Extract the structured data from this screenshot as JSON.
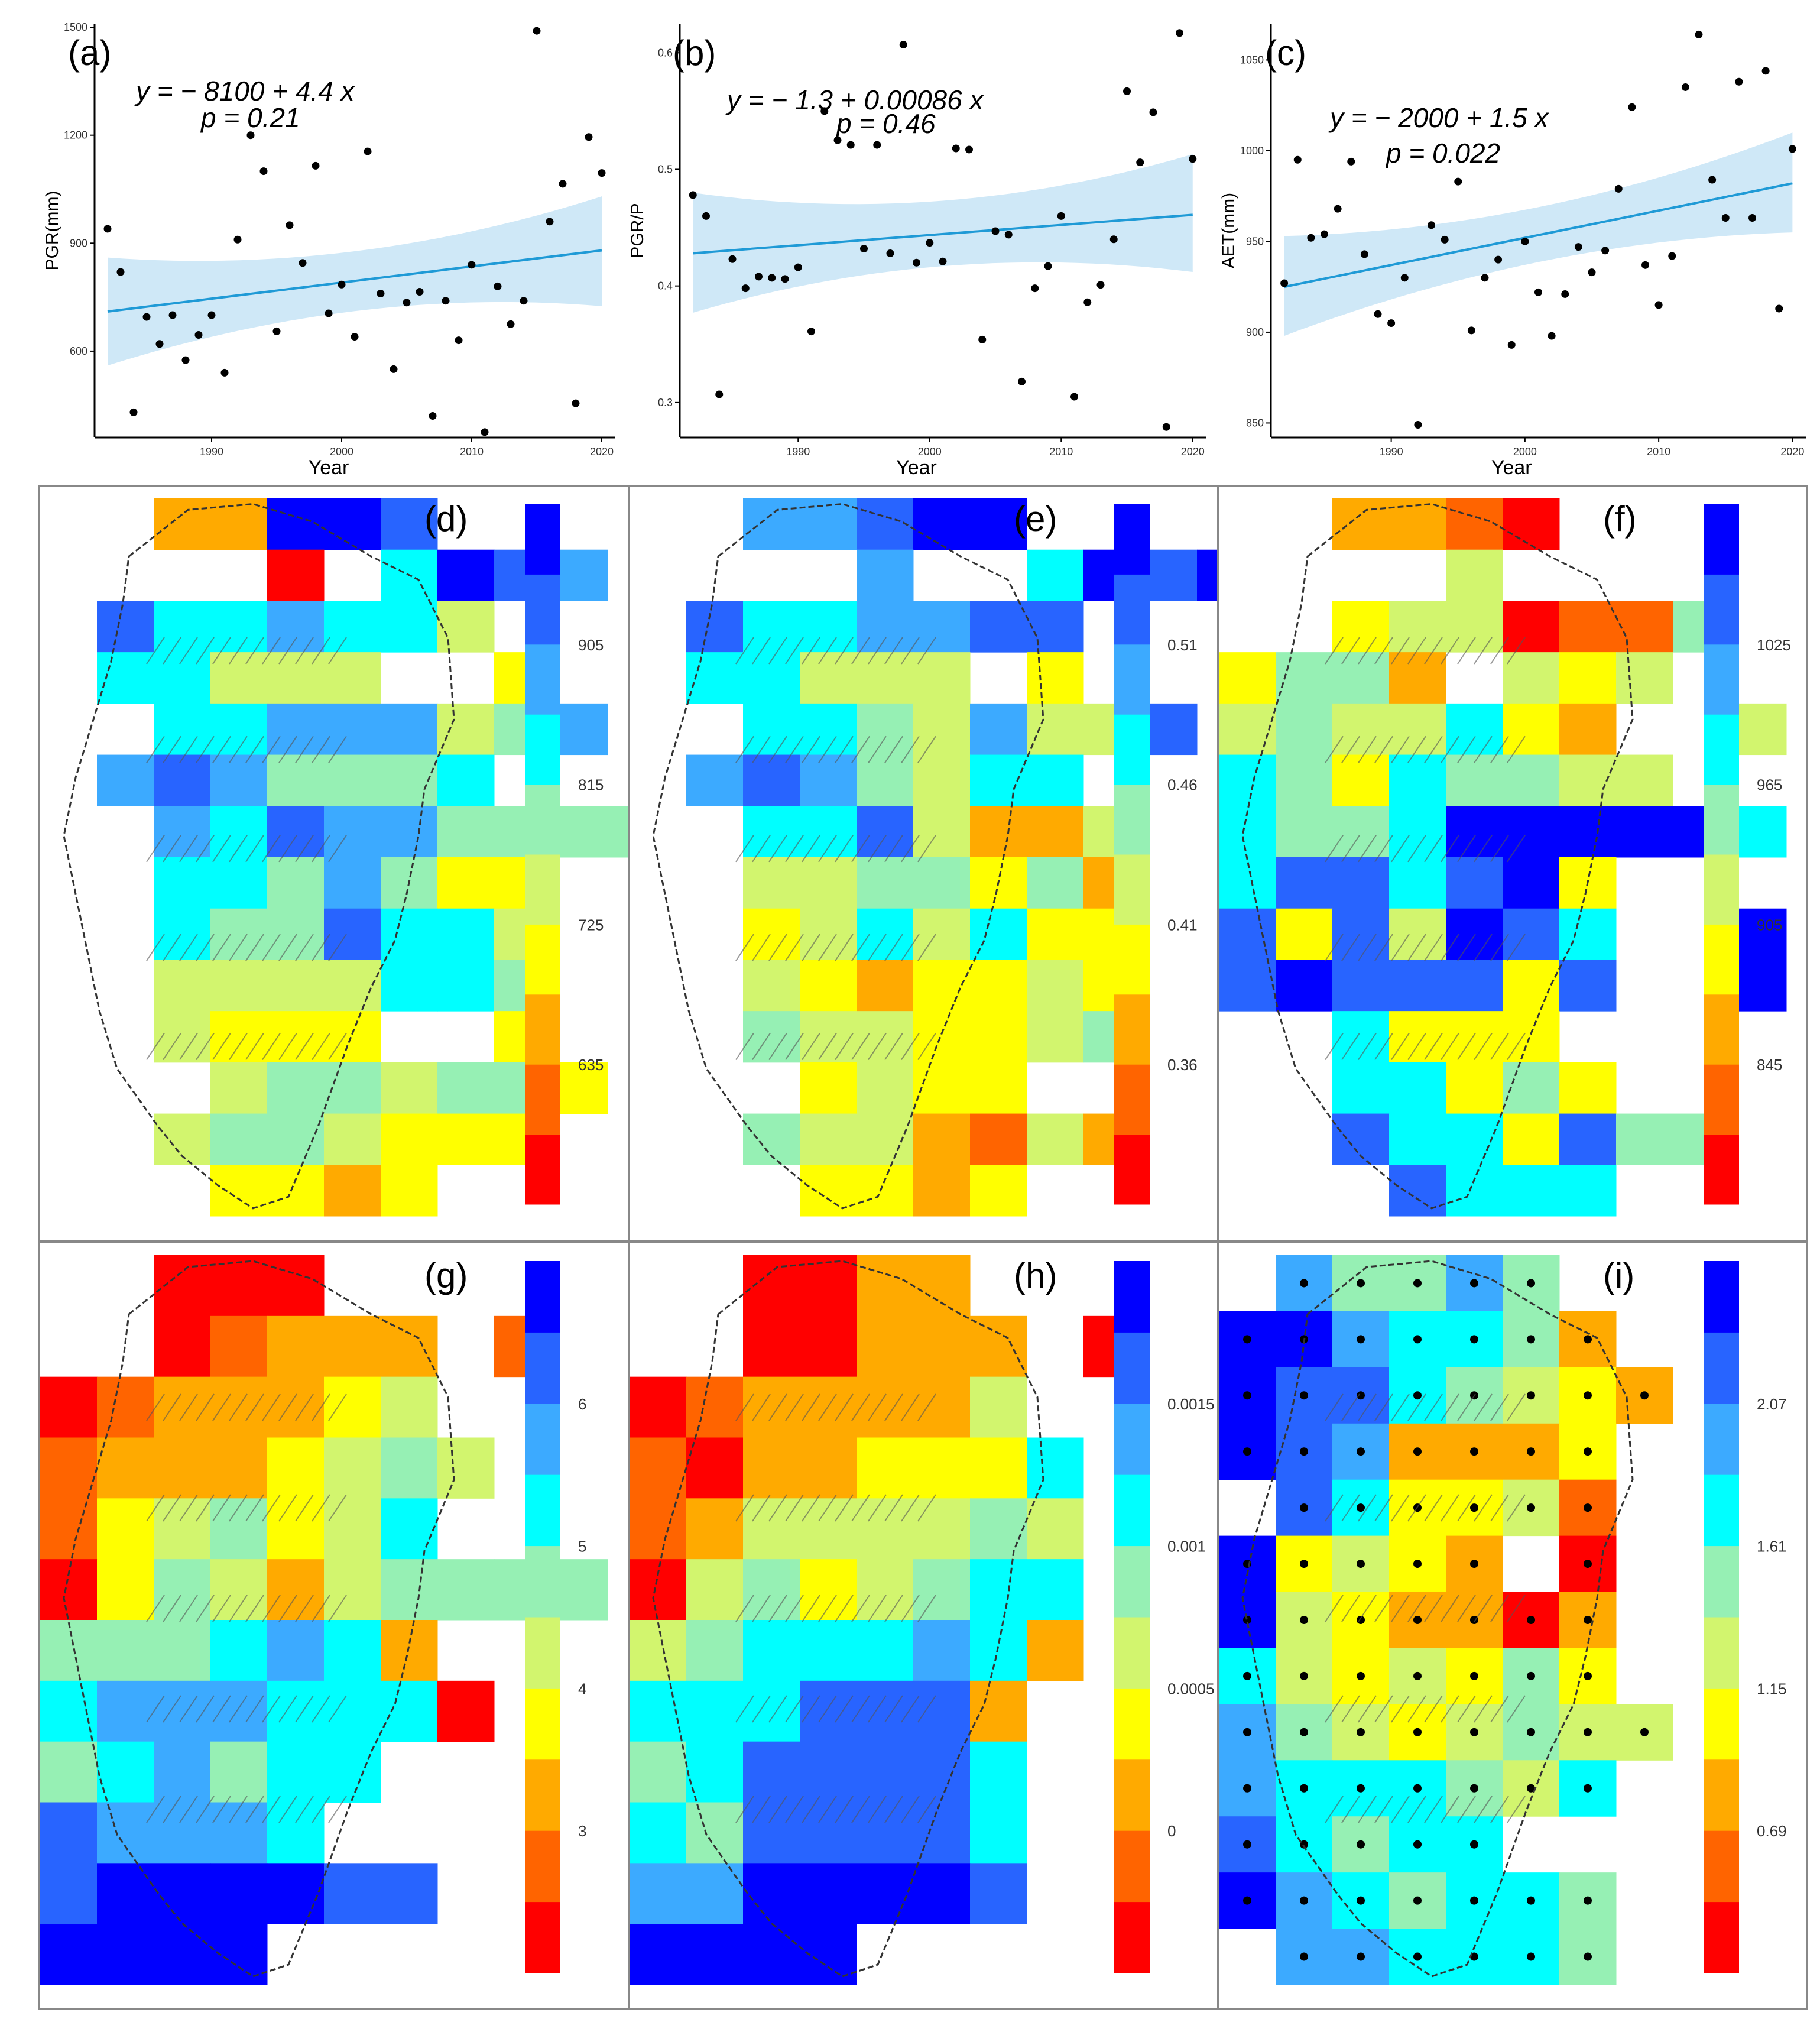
{
  "colors": {
    "ramp": [
      "#ff0000",
      "#ff6400",
      "#ffaa00",
      "#ffff00",
      "#d2f56e",
      "#96f0b4",
      "#00ffff",
      "#3caaff",
      "#2864ff",
      "#0000ff"
    ],
    "fit_line": "#1f9ad6",
    "ci_band": "#cfe8f7",
    "points": "#000000"
  },
  "chart_data": [
    {
      "id": "a",
      "type": "scatter",
      "panel_label": "(a)",
      "equation": "y = − 8100 + 4.4 x",
      "p_text": "p = 0.21",
      "xlabel": "Year",
      "ylabel": "PGR(mm)",
      "xlim": [
        1981,
        2021
      ],
      "ylim": [
        360,
        1510
      ],
      "xticks": [
        1990,
        2000,
        2010,
        2020
      ],
      "yticks": [
        600,
        900,
        1200,
        1500
      ],
      "xtick_labels": [
        "1990",
        "2000",
        "2010",
        "2020"
      ],
      "ytick_labels": [
        "600",
        "900",
        "1200",
        "1500"
      ],
      "fit": {
        "x": [
          1982,
          2020
        ],
        "y": [
          710,
          880
        ],
        "ci_lo": [
          560,
          725
        ],
        "ci_hi": [
          860,
          1030
        ]
      },
      "points": [
        [
          1982,
          940
        ],
        [
          1983,
          820
        ],
        [
          1984,
          430
        ],
        [
          1985,
          695
        ],
        [
          1986,
          620
        ],
        [
          1987,
          700
        ],
        [
          1988,
          575
        ],
        [
          1989,
          645
        ],
        [
          1990,
          700
        ],
        [
          1991,
          540
        ],
        [
          1992,
          910
        ],
        [
          1993,
          1200
        ],
        [
          1994,
          1100
        ],
        [
          1995,
          655
        ],
        [
          1996,
          950
        ],
        [
          1997,
          845
        ],
        [
          1998,
          1115
        ],
        [
          1999,
          705
        ],
        [
          2000,
          785
        ],
        [
          2001,
          640
        ],
        [
          2002,
          1155
        ],
        [
          2003,
          760
        ],
        [
          2004,
          550
        ],
        [
          2005,
          735
        ],
        [
          2006,
          765
        ],
        [
          2007,
          420
        ],
        [
          2008,
          740
        ],
        [
          2009,
          630
        ],
        [
          2010,
          840
        ],
        [
          2011,
          375
        ],
        [
          2012,
          780
        ],
        [
          2013,
          675
        ],
        [
          2014,
          740
        ],
        [
          2015,
          1490
        ],
        [
          2016,
          960
        ],
        [
          2017,
          1065
        ],
        [
          2018,
          455
        ],
        [
          2019,
          1195
        ],
        [
          2020,
          1095
        ]
      ]
    },
    {
      "id": "b",
      "type": "scatter",
      "panel_label": "(b)",
      "equation": "y = − 1.3 + 0.00086 x",
      "p_text": "p = 0.46",
      "xlabel": "Year",
      "ylabel": "PGR/P",
      "xlim": [
        1981,
        2021
      ],
      "ylim": [
        0.27,
        0.625
      ],
      "xticks": [
        1990,
        2000,
        2010,
        2020
      ],
      "yticks": [
        0.3,
        0.4,
        0.5,
        0.6
      ],
      "xtick_labels": [
        "1990",
        "2000",
        "2010",
        "2020"
      ],
      "ytick_labels": [
        "0.3",
        "0.4",
        "0.5",
        "0.6"
      ],
      "fit": {
        "x": [
          1982,
          2020
        ],
        "y": [
          0.428,
          0.461
        ],
        "ci_lo": [
          0.377,
          0.412
        ],
        "ci_hi": [
          0.48,
          0.513
        ]
      },
      "points": [
        [
          1982,
          0.478
        ],
        [
          1983,
          0.46
        ],
        [
          1984,
          0.307
        ],
        [
          1985,
          0.423
        ],
        [
          1986,
          0.398
        ],
        [
          1987,
          0.408
        ],
        [
          1988,
          0.407
        ],
        [
          1989,
          0.406
        ],
        [
          1990,
          0.416
        ],
        [
          1991,
          0.361
        ],
        [
          1992,
          0.55
        ],
        [
          1993,
          0.525
        ],
        [
          1994,
          0.521
        ],
        [
          1995,
          0.432
        ],
        [
          1996,
          0.521
        ],
        [
          1997,
          0.428
        ],
        [
          1998,
          0.607
        ],
        [
          1999,
          0.42
        ],
        [
          2000,
          0.437
        ],
        [
          2001,
          0.421
        ],
        [
          2002,
          0.518
        ],
        [
          2003,
          0.517
        ],
        [
          2004,
          0.354
        ],
        [
          2005,
          0.447
        ],
        [
          2006,
          0.444
        ],
        [
          2007,
          0.318
        ],
        [
          2008,
          0.398
        ],
        [
          2009,
          0.417
        ],
        [
          2010,
          0.46
        ],
        [
          2011,
          0.305
        ],
        [
          2012,
          0.386
        ],
        [
          2013,
          0.401
        ],
        [
          2014,
          0.44
        ],
        [
          2015,
          0.567
        ],
        [
          2016,
          0.506
        ],
        [
          2017,
          0.549
        ],
        [
          2018,
          0.279
        ],
        [
          2019,
          0.617
        ],
        [
          2020,
          0.509
        ]
      ]
    },
    {
      "id": "c",
      "type": "scatter",
      "panel_label": "(c)",
      "equation": "y = − 2000 + 1.5 x",
      "p_text": "p = 0.022",
      "xlabel": "Year",
      "ylabel": "AET(mm)",
      "xlim": [
        1981,
        2021
      ],
      "ylim": [
        842,
        1070
      ],
      "xticks": [
        1990,
        2000,
        2010,
        2020
      ],
      "yticks": [
        850,
        900,
        950,
        1000,
        1050
      ],
      "xtick_labels": [
        "1990",
        "2000",
        "2010",
        "2020"
      ],
      "ytick_labels": [
        "850",
        "900",
        "950",
        "1000",
        "1050"
      ],
      "fit": {
        "x": [
          1982,
          2020
        ],
        "y": [
          925,
          982
        ],
        "ci_lo": [
          898,
          955
        ],
        "ci_hi": [
          953,
          1010
        ]
      },
      "points": [
        [
          1982,
          927
        ],
        [
          1983,
          995
        ],
        [
          1984,
          952
        ],
        [
          1985,
          954
        ],
        [
          1986,
          968
        ],
        [
          1987,
          994
        ],
        [
          1988,
          943
        ],
        [
          1989,
          910
        ],
        [
          1990,
          905
        ],
        [
          1991,
          930
        ],
        [
          1992,
          849
        ],
        [
          1993,
          959
        ],
        [
          1994,
          951
        ],
        [
          1995,
          983
        ],
        [
          1996,
          901
        ],
        [
          1997,
          930
        ],
        [
          1998,
          940
        ],
        [
          1999,
          893
        ],
        [
          2000,
          950
        ],
        [
          2001,
          922
        ],
        [
          2002,
          898
        ],
        [
          2003,
          921
        ],
        [
          2004,
          947
        ],
        [
          2005,
          933
        ],
        [
          2006,
          945
        ],
        [
          2007,
          979
        ],
        [
          2008,
          1024
        ],
        [
          2009,
          937
        ],
        [
          2010,
          915
        ],
        [
          2011,
          942
        ],
        [
          2012,
          1035
        ],
        [
          2013,
          1064
        ],
        [
          2014,
          984
        ],
        [
          2015,
          963
        ],
        [
          2016,
          1038
        ],
        [
          2017,
          963
        ],
        [
          2018,
          1044
        ],
        [
          2019,
          913
        ],
        [
          2020,
          1001
        ]
      ]
    },
    {
      "id": "d",
      "type": "heatmap",
      "panel_label": "(d)",
      "legend_labels": [
        "635",
        "725",
        "815",
        "905"
      ],
      "grid": [
        "..22998...",
        "....0.6987.",
        ".8667664..",
        ".66444..3....",
        "..66777457..",
        ".7875556....",
        "..7687755552.",
        "..6657533..",
        "..6558664..0.",
        "..4444665..1.",
        "..4333..3...",
        "...4554553..",
        "..4554333..",
        "...3323..."
      ]
    },
    {
      "id": "e",
      "type": "heatmap",
      "panel_label": "(e)",
      "legend_labels": [
        "0.36",
        "0.41",
        "0.46",
        "0.51"
      ],
      "grid": [
        "..77899...",
        "....7..6989.",
        ".8667788..",
        ".66444.3....",
        "..66547448..",
        ".7875466....",
        "..6684224..",
        "..4455352..",
        "..3464633..0.",
        "..4323343..",
        "..5443345..",
        "...3433..",
        "..5442142..",
        "...3323..."
      ]
    },
    {
      "id": "f",
      "type": "heatmap",
      "panel_label": "(f)",
      "legend_labels": [
        "845",
        "905",
        "965",
        "1025"
      ],
      "grid": [
        "..2210...",
        "....4...",
        "..3440115..",
        "3552.434.",
        "4544632..4.",
        "65365544....",
        "6556999996.",
        "6886893...",
        "8384986..9.",
        "8988838..9.",
        "..6333.",
        "..66353..",
        "..8663855..",
        "...8666.."
      ]
    },
    {
      "id": "g",
      "type": "heatmap",
      "panel_label": "(g)",
      "legend_labels": [
        "3",
        "4",
        "5",
        "6"
      ],
      "grid": [
        "..000..",
        "..01222.1",
        "0122234",
        "12223454",
        "1345346..",
        "0354245555.",
        "5556762..",
        "67776660.",
        "567566.",
        "87776.",
        "8999988.",
        "9999.."
      ]
    },
    {
      "id": "h",
      "type": "heatmap",
      "panel_label": "(h)",
      "legend_labels": [
        "0",
        "0.0005",
        "0.001",
        "0.0015"
      ],
      "grid": [
        "..0022..",
        "..00222.0",
        "0122224",
        "10223336",
        "12444454",
        "04534566",
        "45666762",
        "6668882",
        "5688886",
        "6588886",
        "7799998",
        "9999.."
      ]
    },
    {
      "id": "i",
      "type": "heatmap",
      "panel_label": "(i)",
      "legend_labels": [
        "0.69",
        "1.15",
        "1.61",
        "2.07"
      ],
      "grid": [
        ".75575..",
        "9976652.",
        "98865432",
        "9872223",
        ".863341.",
        "93432.0.",
        "9432202.",
        "6434353",
        "75434544",
        "7666546",
        "86566",
        "9765665..",
        ".776665"
      ]
    }
  ]
}
